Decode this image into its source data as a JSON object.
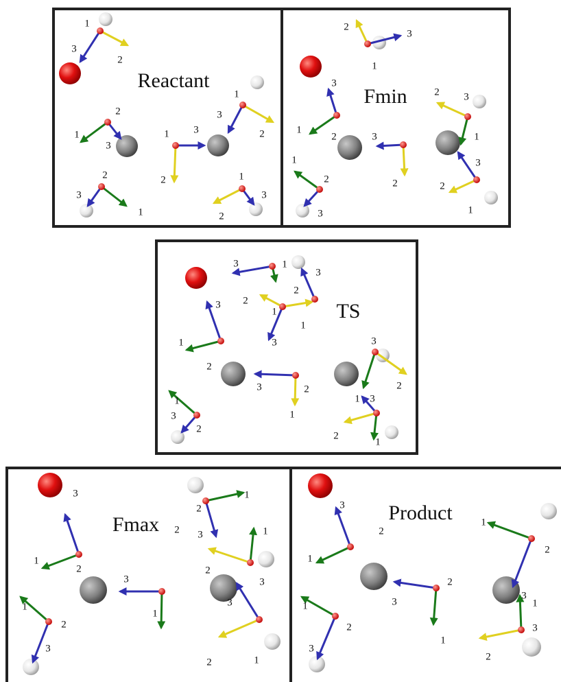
{
  "panels": [
    {
      "title": "Reactant",
      "labels": [
        "1",
        "3",
        "2",
        "2",
        "1",
        "3",
        "3",
        "1",
        "2",
        "1",
        "3",
        "2",
        "2",
        "3",
        "1",
        "1",
        "3",
        "2"
      ]
    },
    {
      "title": "Fmin",
      "labels": [
        "2",
        "3",
        "1",
        "3",
        "1",
        "2",
        "3",
        "2",
        "2",
        "3",
        "1",
        "3",
        "2",
        "1",
        "1",
        "2",
        "3"
      ]
    },
    {
      "title": "TS",
      "labels": [
        "3",
        "1",
        "3",
        "2",
        "2",
        "1",
        "1",
        "3",
        "3",
        "1",
        "2",
        "3",
        "2",
        "1",
        "3",
        "2",
        "1",
        "3",
        "2",
        "1",
        "1",
        "3",
        "2"
      ]
    },
    {
      "title": "Fmax",
      "labels": [
        "3",
        "1",
        "2",
        "3",
        "2",
        "1",
        "1",
        "2",
        "3",
        "2",
        "1",
        "3",
        "1",
        "2",
        "3",
        "3",
        "2",
        "1"
      ]
    },
    {
      "title": "Product",
      "labels": [
        "3",
        "2",
        "1",
        "2",
        "3",
        "1",
        "1",
        "2",
        "3",
        "1",
        "2",
        "3",
        "1",
        "3",
        "2"
      ]
    }
  ]
}
